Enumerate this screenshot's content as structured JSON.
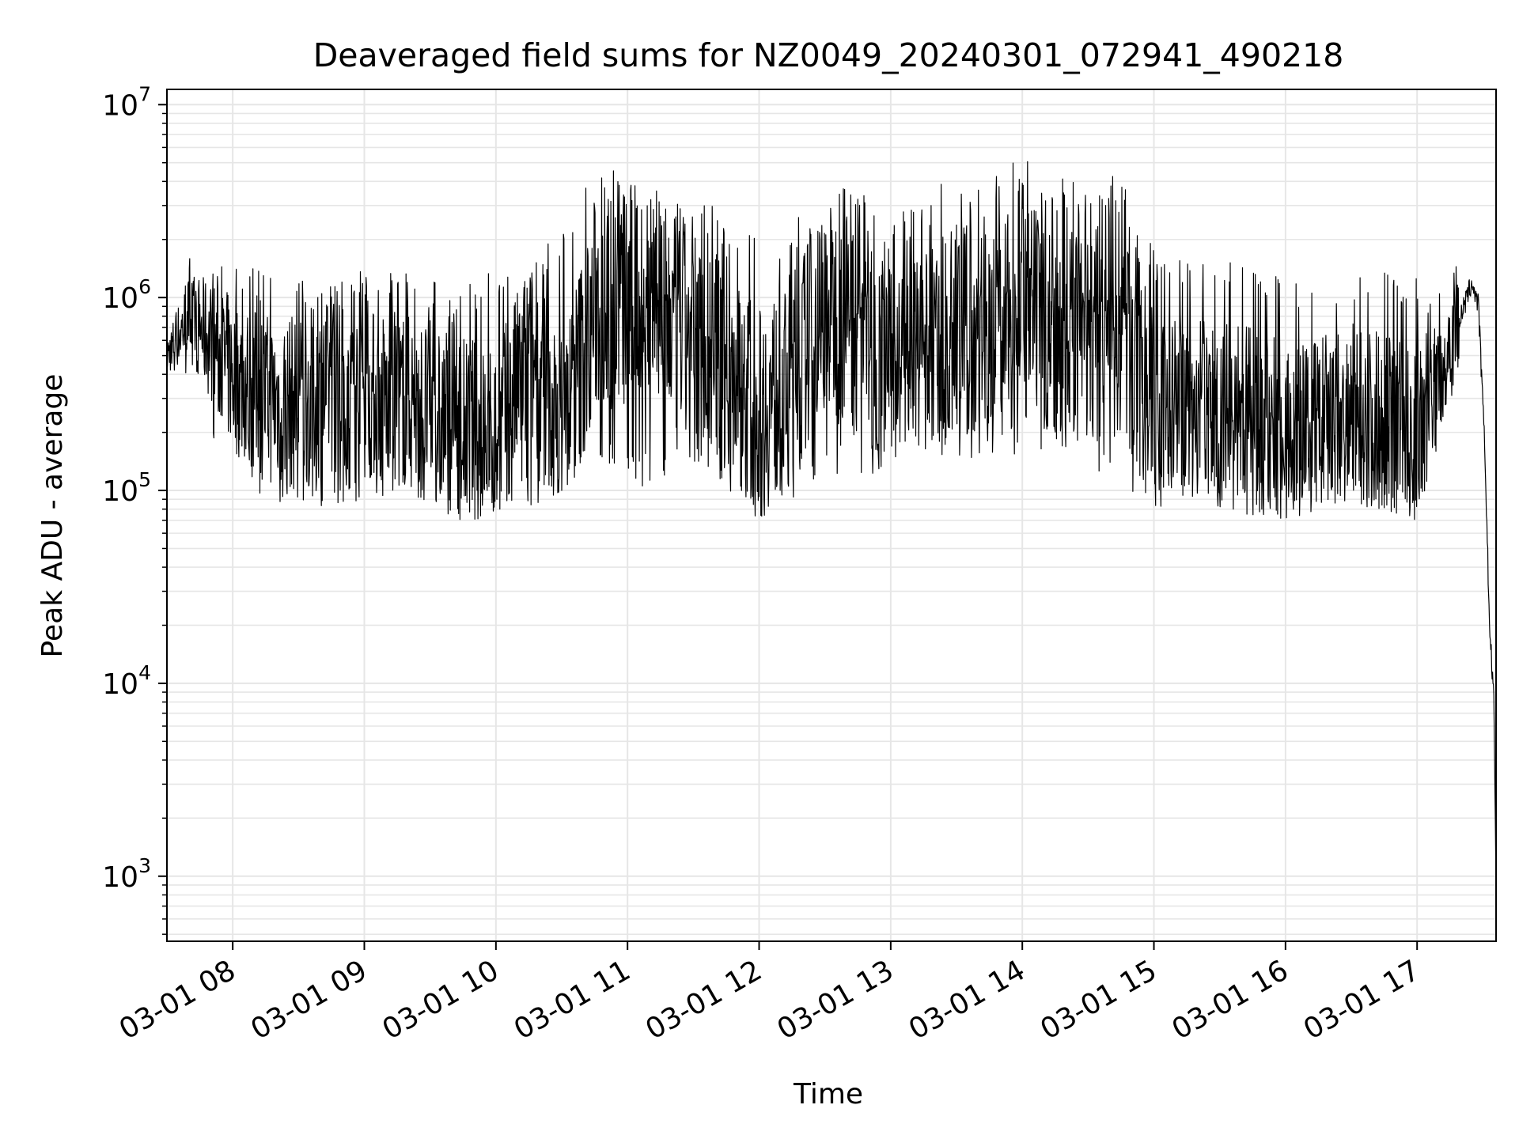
{
  "chart_data": {
    "type": "line",
    "title": "Deaveraged field sums for NZ0049_20240301_072941_490218",
    "xlabel": "Time",
    "ylabel": "Peak ADU - average",
    "yscale": "log",
    "ylim": [
      460,
      12000000
    ],
    "xlim": [
      "2024-03-01 07:30",
      "2024-03-01 17:36"
    ],
    "grid": true,
    "line_color": "#000000",
    "grid_color": "#e6e6e6",
    "x_ticks": [
      {
        "value": "2024-03-01 08:00",
        "label": "03-01 08"
      },
      {
        "value": "2024-03-01 09:00",
        "label": "03-01 09"
      },
      {
        "value": "2024-03-01 10:00",
        "label": "03-01 10"
      },
      {
        "value": "2024-03-01 11:00",
        "label": "03-01 11"
      },
      {
        "value": "2024-03-01 12:00",
        "label": "03-01 12"
      },
      {
        "value": "2024-03-01 13:00",
        "label": "03-01 13"
      },
      {
        "value": "2024-03-01 14:00",
        "label": "03-01 14"
      },
      {
        "value": "2024-03-01 15:00",
        "label": "03-01 15"
      },
      {
        "value": "2024-03-01 16:00",
        "label": "03-01 16"
      },
      {
        "value": "2024-03-01 17:00",
        "label": "03-01 17"
      }
    ],
    "y_ticks": [
      {
        "value": 1000,
        "base": "10",
        "exp": "3"
      },
      {
        "value": 10000,
        "base": "10",
        "exp": "4"
      },
      {
        "value": 100000,
        "base": "10",
        "exp": "5"
      },
      {
        "value": 1000000,
        "base": "10",
        "exp": "6"
      },
      {
        "value": 10000000,
        "base": "10",
        "exp": "7"
      }
    ],
    "series": [
      {
        "x": [
          "2024-03-01 07:30",
          "2024-03-01 07:40",
          "2024-03-01 07:50",
          "2024-03-01 08:00",
          "2024-03-01 08:15",
          "2024-03-01 08:30",
          "2024-03-01 08:45",
          "2024-03-01 09:00",
          "2024-03-01 09:15",
          "2024-03-01 09:30",
          "2024-03-01 09:45",
          "2024-03-01 10:00",
          "2024-03-01 10:15",
          "2024-03-01 10:30",
          "2024-03-01 10:45",
          "2024-03-01 11:00",
          "2024-03-01 11:15",
          "2024-03-01 11:30",
          "2024-03-01 11:45",
          "2024-03-01 12:00",
          "2024-03-01 12:15",
          "2024-03-01 12:30",
          "2024-03-01 12:45",
          "2024-03-01 13:00",
          "2024-03-01 13:15",
          "2024-03-01 13:30",
          "2024-03-01 13:45",
          "2024-03-01 14:00",
          "2024-03-01 14:15",
          "2024-03-01 14:30",
          "2024-03-01 14:45",
          "2024-03-01 15:00",
          "2024-03-01 15:15",
          "2024-03-01 15:30",
          "2024-03-01 15:45",
          "2024-03-01 16:00",
          "2024-03-01 16:15",
          "2024-03-01 16:30",
          "2024-03-01 16:45",
          "2024-03-01 17:00",
          "2024-03-01 17:10",
          "2024-03-01 17:20",
          "2024-03-01 17:25",
          "2024-03-01 17:28",
          "2024-03-01 17:31",
          "2024-03-01 17:33",
          "2024-03-01 17:35",
          "2024-03-01 17:36"
        ],
        "y": [
          500000,
          800000,
          600000,
          400000,
          300000,
          280000,
          350000,
          320000,
          300000,
          260000,
          220000,
          180000,
          500000,
          200000,
          900000,
          1000000,
          800000,
          600000,
          450000,
          250000,
          400000,
          900000,
          700000,
          450000,
          500000,
          700000,
          650000,
          800000,
          700000,
          600000,
          800000,
          250000,
          300000,
          250000,
          230000,
          200000,
          220000,
          250000,
          230000,
          200000,
          400000,
          800000,
          1200000,
          900000,
          150000,
          20000,
          8000,
          1000
        ],
        "lo": [
          350000,
          400000,
          200000,
          120000,
          90000,
          80000,
          80000,
          90000,
          90000,
          70000,
          60000,
          80000,
          80000,
          100000,
          150000,
          110000,
          100000,
          110000,
          100000,
          70000,
          90000,
          120000,
          110000,
          130000,
          150000,
          140000,
          140000,
          150000,
          160000,
          130000,
          100000,
          80000,
          90000,
          80000,
          70000,
          70000,
          80000,
          80000,
          80000,
          70000,
          150000,
          350000,
          800000,
          600000,
          120000,
          12000,
          1500,
          750
        ],
        "hi": [
          650000,
          1600000,
          1400000,
          1500000,
          1400000,
          1400000,
          1300000,
          1400000,
          1500000,
          1300000,
          1100000,
          1500000,
          1800000,
          2200000,
          5000000,
          4500000,
          3500000,
          4000000,
          2500000,
          2000000,
          2500000,
          3500000,
          4000000,
          2500000,
          3500000,
          4500000,
          4000000,
          5500000,
          4500000,
          4000000,
          5500000,
          1800000,
          1500000,
          1600000,
          1400000,
          1400000,
          1400000,
          1500000,
          1400000,
          1400000,
          1100000,
          1700000,
          1700000,
          1400000,
          180000,
          28000,
          14000,
          3500
        ]
      }
    ]
  }
}
